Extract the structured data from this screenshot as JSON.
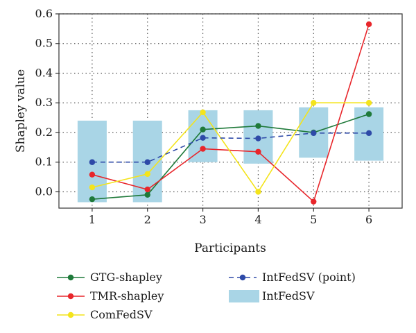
{
  "chart_data": {
    "type": "line",
    "xlabel": "Participants",
    "ylabel": "Shapley value",
    "x": [
      1,
      2,
      3,
      4,
      5,
      6
    ],
    "xlim": [
      0.4,
      6.6
    ],
    "ylim": [
      -0.055,
      0.6
    ],
    "x_ticks": [
      "1",
      "2",
      "3",
      "4",
      "5",
      "6"
    ],
    "y_ticks": [
      "0.0",
      "0.1",
      "0.2",
      "0.3",
      "0.4",
      "0.5",
      "0.6"
    ],
    "grid": true,
    "legend_position": "bottom",
    "intervals": {
      "name": "IntFedSV",
      "color": "#a9d5e6",
      "lower": [
        -0.035,
        -0.035,
        0.1,
        0.095,
        0.115,
        0.105
      ],
      "upper": [
        0.24,
        0.24,
        0.275,
        0.275,
        0.285,
        0.285
      ]
    },
    "series": [
      {
        "name": "GTG-shapley",
        "color": "#1f7a3a",
        "style": "solid",
        "values": [
          -0.025,
          -0.01,
          0.21,
          0.222,
          0.2,
          0.262
        ]
      },
      {
        "name": "TMR-shapley",
        "color": "#e8262b",
        "style": "solid",
        "values": [
          0.058,
          0.008,
          0.145,
          0.135,
          -0.033,
          0.565
        ]
      },
      {
        "name": "ComFedSV",
        "color": "#f4e41c",
        "style": "solid",
        "values": [
          0.015,
          0.06,
          0.268,
          0.0,
          0.3,
          0.3
        ]
      },
      {
        "name": "IntFedSV (point)",
        "color": "#2e4aa8",
        "style": "dashed",
        "values": [
          0.1,
          0.1,
          0.182,
          0.18,
          0.198,
          0.198
        ]
      }
    ]
  }
}
